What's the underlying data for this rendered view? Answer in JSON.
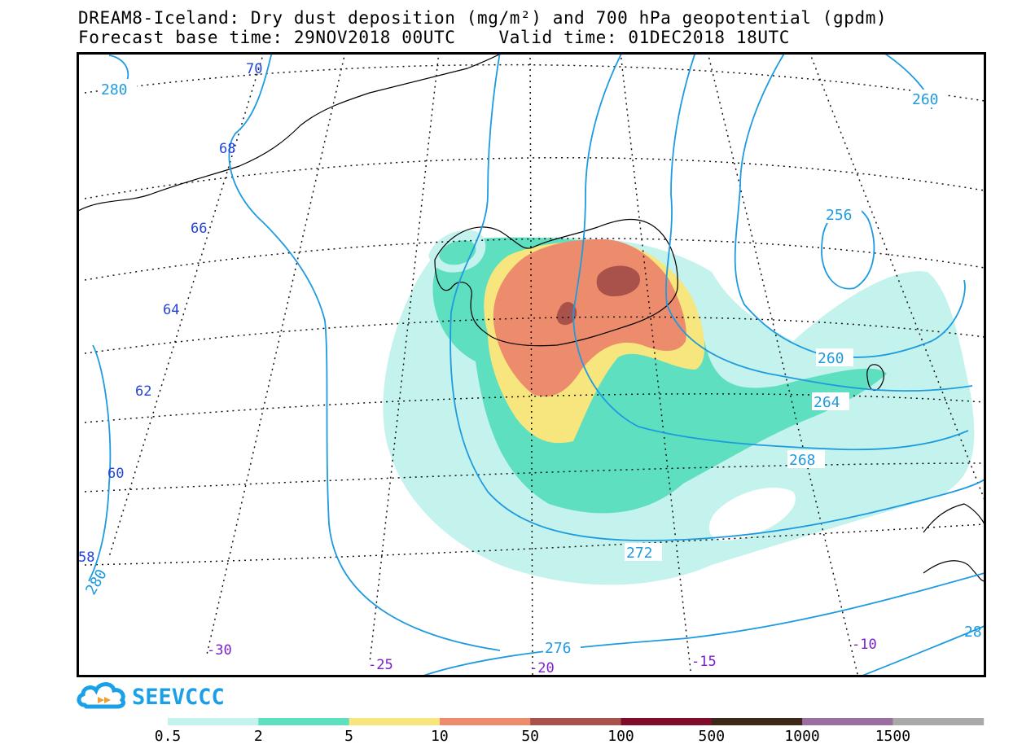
{
  "header": {
    "title_line1": "DREAM8-Iceland: Dry dust deposition (mg/m²) and 700 hPa geopotential (gpdm)",
    "title_line2": "Forecast base time: 29NOV2018 00UTC    Valid time: 01DEC2018 18UTC"
  },
  "map": {
    "latitude_labels": [
      "70",
      "68",
      "66",
      "64",
      "62",
      "60",
      "58"
    ],
    "longitude_labels": [
      "-30",
      "-25",
      "-20",
      "-15",
      "-10"
    ],
    "contour_labels": [
      "280",
      "280",
      "260",
      "256",
      "260",
      "264",
      "268",
      "272",
      "276",
      "28"
    ],
    "contour_color": "#1e9be0",
    "lat_label_color": "#2244dd",
    "lon_label_color": "#7a1fc9"
  },
  "logo": {
    "text": "SEEVCCC",
    "color": "#1aa0e6"
  },
  "legend": {
    "colors": [
      "#c4f2ec",
      "#5edfbf",
      "#f7e67d",
      "#ec8c6c",
      "#a8524b",
      "#7f0c2b",
      "#3d2718",
      "#9a6e9f",
      "#a9a9a9"
    ],
    "labels": [
      "0.5",
      "2",
      "5",
      "10",
      "50",
      "100",
      "500",
      "1000",
      "1500"
    ]
  }
}
